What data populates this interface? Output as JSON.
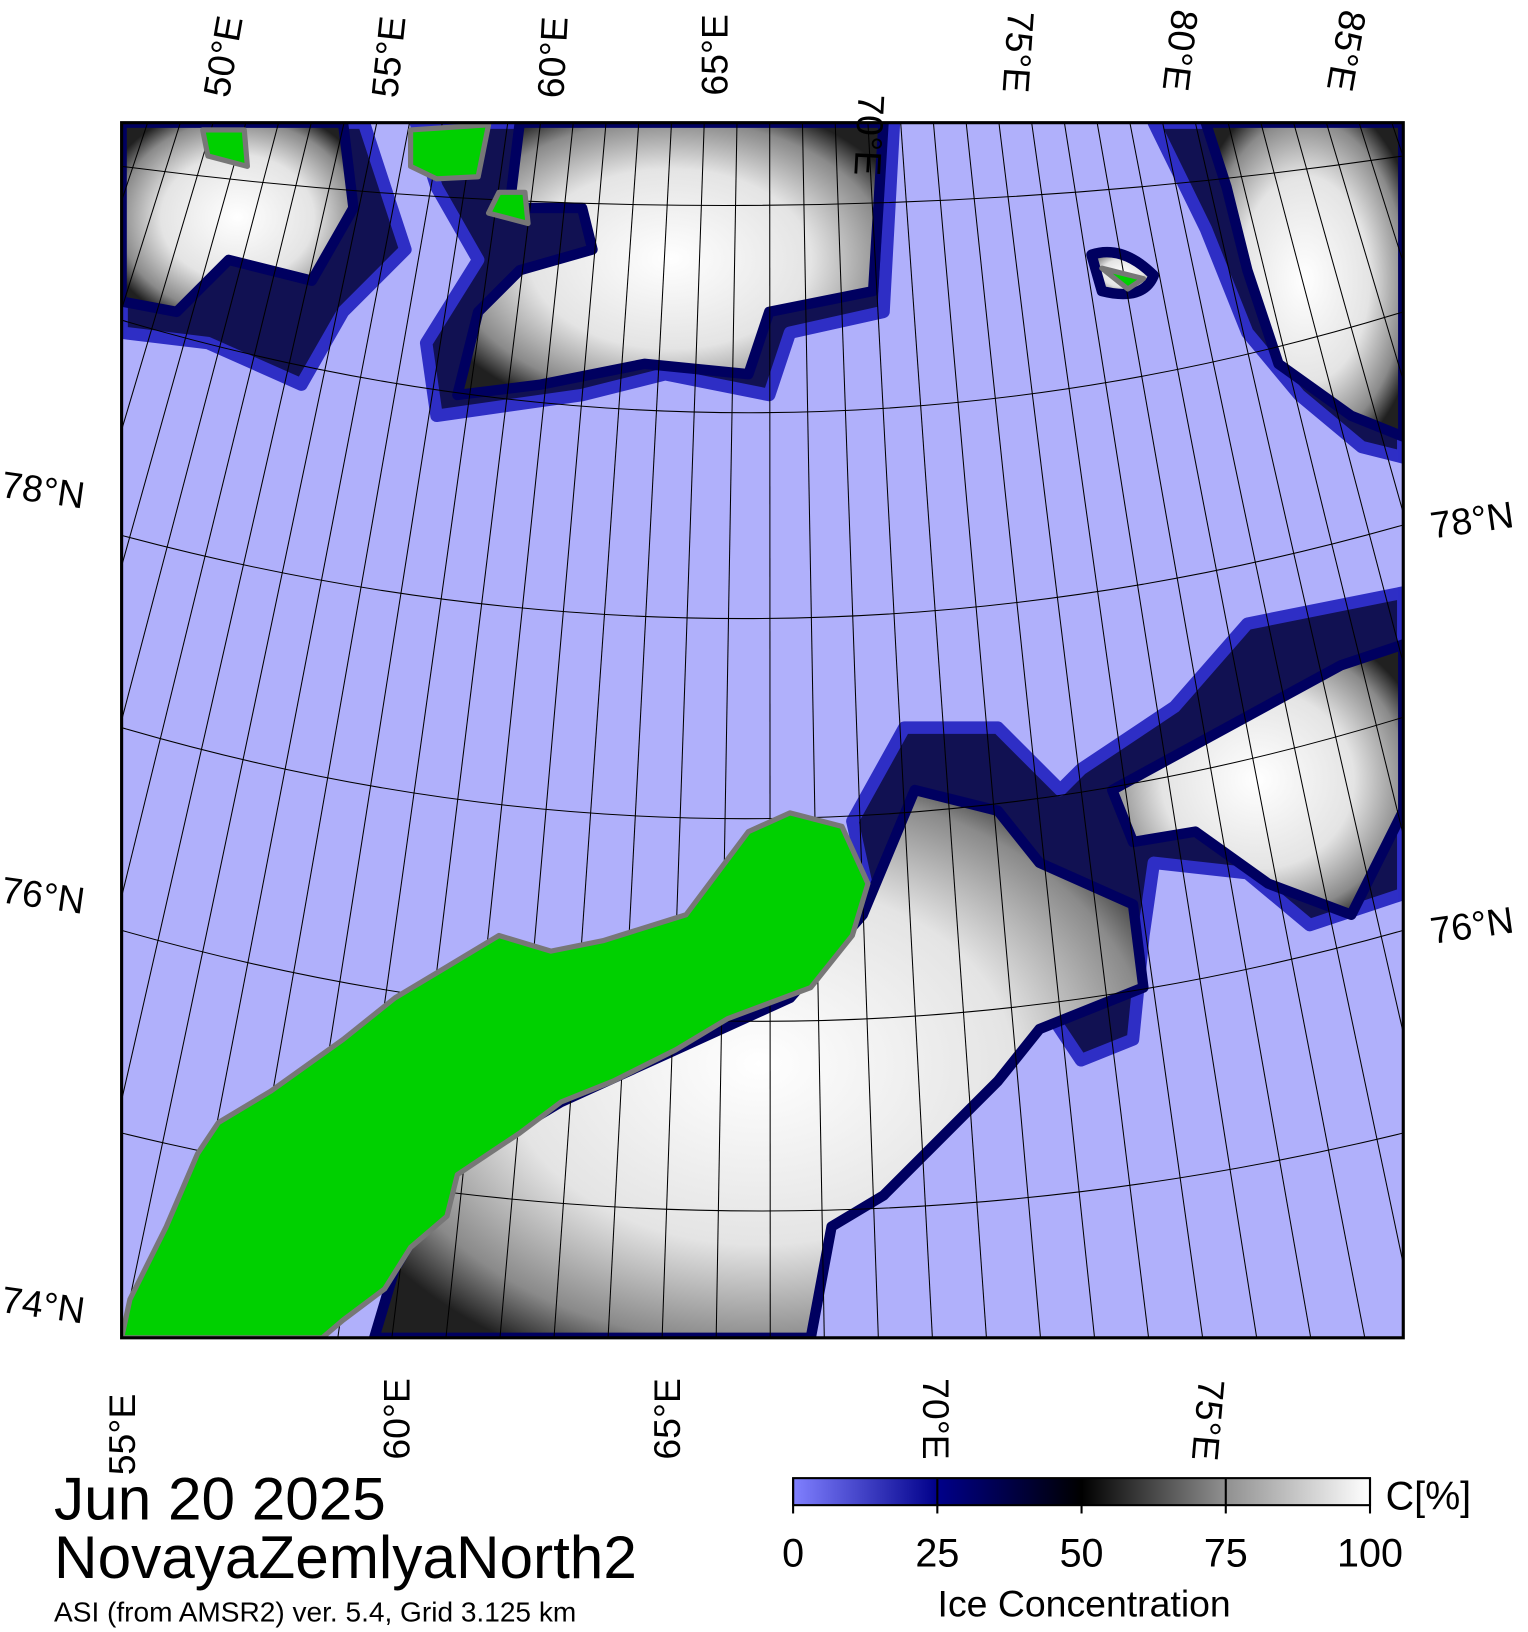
{
  "map": {
    "top_labels": [
      "50°E",
      "55°E",
      "60°E",
      "65°E",
      "70°E",
      "75°E",
      "80°E",
      "85°E"
    ],
    "left_labels": [
      "78°N",
      "76°N",
      "74°N"
    ],
    "right_labels": [
      "78°N",
      "76°N"
    ],
    "bottom_labels": [
      "55°E",
      "60°E",
      "65°E",
      "70°E",
      "75°E"
    ]
  },
  "caption": {
    "date": "Jun 20 2025",
    "region": "NovayaZemlyaNorth2",
    "source": "ASI (from AMSR2) ver. 5.4,  Grid 3.125 km"
  },
  "colorbar": {
    "range": [
      0,
      100
    ],
    "ticks": [
      0,
      25,
      50,
      75,
      100
    ],
    "unit": "C[%]",
    "label": "Ice Concentration"
  }
}
